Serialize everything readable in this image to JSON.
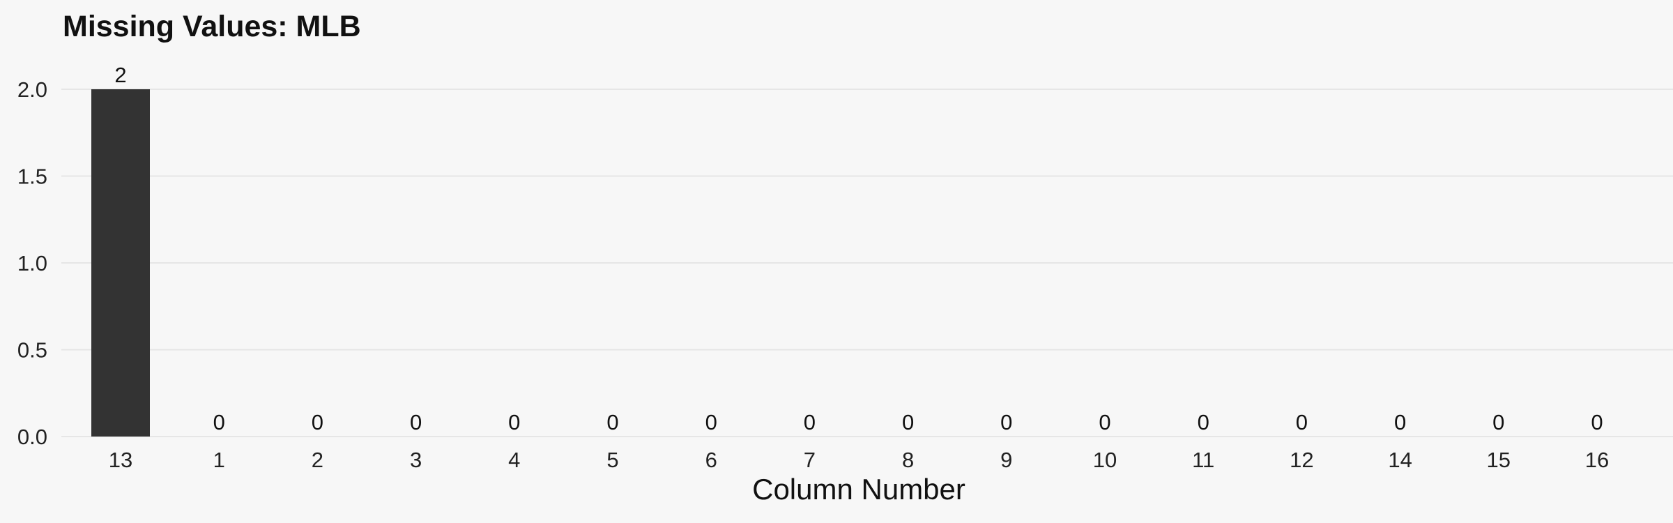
{
  "chart_data": {
    "type": "bar",
    "title": "Missing Values: MLB",
    "xlabel": "Column Number",
    "ylabel": "",
    "categories": [
      "13",
      "1",
      "2",
      "3",
      "4",
      "5",
      "6",
      "7",
      "8",
      "9",
      "10",
      "11",
      "12",
      "14",
      "15",
      "16"
    ],
    "values": [
      2,
      0,
      0,
      0,
      0,
      0,
      0,
      0,
      0,
      0,
      0,
      0,
      0,
      0,
      0,
      0
    ],
    "ylim": [
      0,
      2
    ],
    "yticks": [
      "0.0",
      "0.5",
      "1.0",
      "1.5",
      "2.0"
    ],
    "grid": true,
    "legend": "none",
    "bar_color": "#333333",
    "grid_color": "#e6e6e6",
    "background_color": "#f7f7f7"
  }
}
